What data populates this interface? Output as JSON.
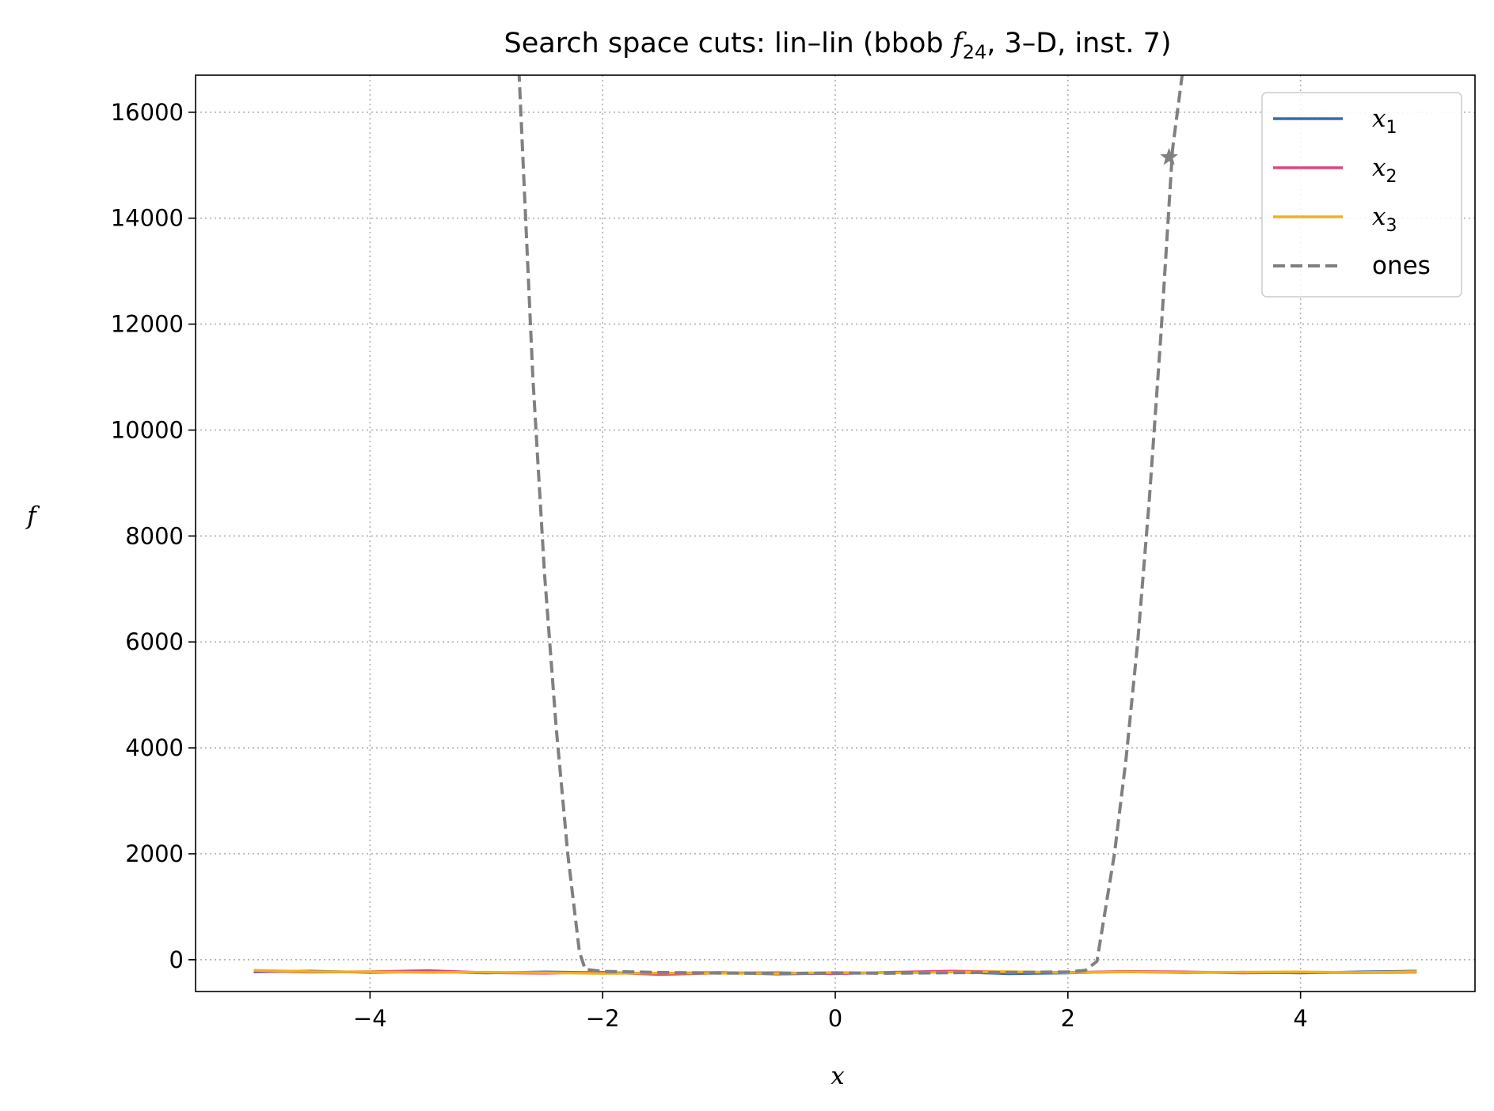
{
  "chart_data": {
    "type": "line",
    "title": {
      "prefix": "Search space cuts: lin–lin (bbob ",
      "func_symbol": "f",
      "func_sub": "24",
      "suffix": ", 3–D, inst. 7)"
    },
    "xlabel": "x",
    "ylabel": "f",
    "xlim": [
      -5.5,
      5.5
    ],
    "ylim": [
      -600,
      16700
    ],
    "xticks": [
      -4,
      -2,
      0,
      2,
      4
    ],
    "xtick_labels": [
      "−4",
      "−2",
      "0",
      "2",
      "4"
    ],
    "yticks": [
      0,
      2000,
      4000,
      6000,
      8000,
      10000,
      12000,
      14000,
      16000
    ],
    "ytick_labels": [
      "0",
      "2000",
      "4000",
      "6000",
      "8000",
      "10000",
      "12000",
      "14000",
      "16000"
    ],
    "grid": true,
    "legend_position": "top-right",
    "series": [
      {
        "name": "x1",
        "legend_sym": "x",
        "legend_sub": "1",
        "color": "#3a68b0",
        "style": "solid",
        "x": [
          -5.0,
          -4.5,
          -4.0,
          -3.5,
          -3.0,
          -2.5,
          -2.0,
          -1.5,
          -1.0,
          -0.5,
          0.0,
          0.5,
          1.0,
          1.5,
          2.0,
          2.5,
          3.0,
          3.5,
          4.0,
          4.5,
          5.0
        ],
        "y": [
          -230,
          -215,
          -240,
          -225,
          -250,
          -230,
          -245,
          -260,
          -240,
          -270,
          -255,
          -240,
          -230,
          -265,
          -250,
          -225,
          -245,
          -235,
          -250,
          -230,
          -215
        ]
      },
      {
        "name": "x2",
        "legend_sym": "x",
        "legend_sub": "2",
        "color": "#e0457b",
        "style": "solid",
        "x": [
          -5.0,
          -4.5,
          -4.0,
          -3.5,
          -3.0,
          -2.5,
          -2.0,
          -1.5,
          -1.0,
          -0.5,
          0.0,
          0.5,
          1.0,
          1.5,
          2.0,
          2.5,
          3.0,
          3.5,
          4.0,
          4.5,
          5.0
        ],
        "y": [
          -210,
          -235,
          -225,
          -205,
          -245,
          -255,
          -235,
          -280,
          -250,
          -245,
          -265,
          -235,
          -215,
          -230,
          -240,
          -220,
          -230,
          -250,
          -240,
          -245,
          -235
        ]
      },
      {
        "name": "x3",
        "legend_sym": "x",
        "legend_sub": "3",
        "color": "#f2b01e",
        "style": "solid",
        "x": [
          -5.0,
          -4.5,
          -4.0,
          -3.5,
          -3.0,
          -2.5,
          -2.0,
          -1.5,
          -1.0,
          -0.5,
          0.0,
          0.5,
          1.0,
          1.5,
          2.0,
          2.5,
          3.0,
          3.5,
          4.0,
          4.5,
          5.0
        ],
        "y": [
          -200,
          -225,
          -230,
          -240,
          -235,
          -245,
          -260,
          -250,
          -255,
          -260,
          -240,
          -250,
          -235,
          -225,
          -245,
          -230,
          -240,
          -235,
          -230,
          -240,
          -225
        ]
      },
      {
        "name": "ones",
        "legend_label": "ones",
        "color": "#808080",
        "style": "dashed",
        "x": [
          -2.72,
          -2.6,
          -2.5,
          -2.4,
          -2.3,
          -2.2,
          -2.15,
          -2.0,
          -1.5,
          -1.0,
          -0.5,
          0.0,
          0.5,
          1.0,
          1.5,
          2.0,
          2.15,
          2.25,
          2.4,
          2.5,
          2.6,
          2.7,
          2.8,
          2.9,
          3.0
        ],
        "y": [
          16800,
          11000,
          7300,
          4400,
          2000,
          150,
          -180,
          -220,
          -240,
          -250,
          -260,
          -250,
          -255,
          -245,
          -240,
          -230,
          -200,
          -30,
          2000,
          3800,
          6000,
          8700,
          11800,
          15300,
          17000
        ]
      }
    ],
    "markers": [
      {
        "series": "ones",
        "symbol": "star",
        "x": 2.87,
        "y": 15150,
        "color": "#808080"
      }
    ]
  }
}
